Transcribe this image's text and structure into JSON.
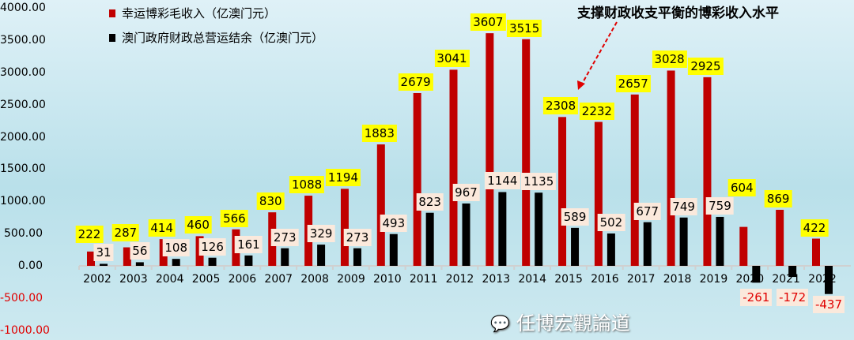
{
  "chart_data": {
    "type": "bar",
    "categories": [
      "2002",
      "2003",
      "2004",
      "2005",
      "2006",
      "2007",
      "2008",
      "2009",
      "2010",
      "2011",
      "2012",
      "2013",
      "2014",
      "2015",
      "2016",
      "2017",
      "2018",
      "2019",
      "2020",
      "2021",
      "2022"
    ],
    "series": [
      {
        "name": "幸运博彩毛收入（亿澳门元）",
        "color": "#c00000",
        "values": [
          222,
          287,
          414,
          460,
          566,
          830,
          1088,
          1194,
          1883,
          2679,
          3041,
          3607,
          3515,
          2308,
          2232,
          2657,
          3028,
          2925,
          604,
          869,
          422
        ]
      },
      {
        "name": "澳门政府财政总营运结余（亿澳门元）",
        "color": "#000000",
        "values": [
          31,
          56,
          108,
          126,
          161,
          273,
          329,
          273,
          493,
          823,
          967,
          1144,
          1135,
          589,
          502,
          677,
          749,
          759,
          -261,
          -172,
          -437
        ]
      }
    ],
    "ylim": [
      -1000,
      4000
    ],
    "yticks": [
      "4000.00",
      "3500.00",
      "3000.00",
      "2500.00",
      "2000.00",
      "1500.00",
      "1000.00",
      "500.00",
      "0.00",
      "-500.00",
      "-1000.00"
    ],
    "annotation": "支撑财政收支平衡的博彩收入水平",
    "grid": false,
    "legend": "top-left"
  },
  "watermark": "任博宏觀論道"
}
